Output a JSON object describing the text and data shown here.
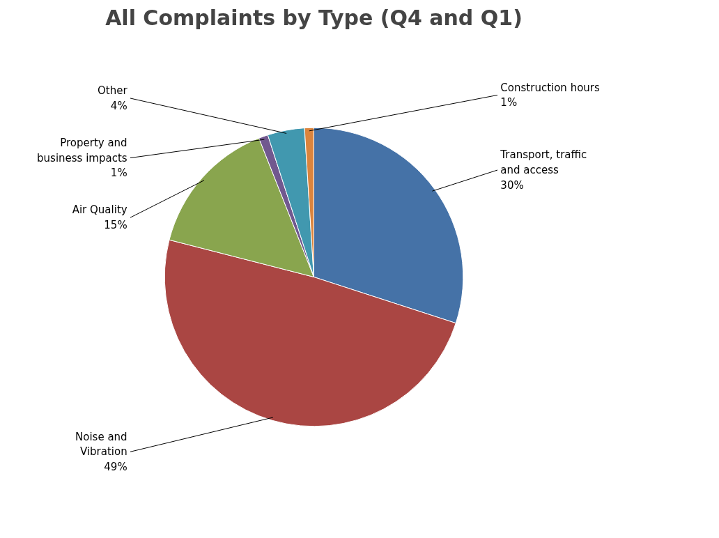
{
  "chart_data": {
    "type": "pie",
    "title": "All Complaints by Type (Q4 and Q1)",
    "categories": [
      "Transport, traffic and access",
      "Noise and Vibration",
      "Air Quality",
      "Property and business impacts",
      "Other",
      "Construction hours"
    ],
    "values": [
      30,
      49,
      15,
      1,
      4,
      1
    ],
    "colors": [
      "#4572a7",
      "#aa4643",
      "#89a54e",
      "#71588f",
      "#4198af",
      "#db843d"
    ],
    "value_labels": [
      "30%",
      "49%",
      "15%",
      "1%",
      "4%",
      "1%"
    ]
  }
}
